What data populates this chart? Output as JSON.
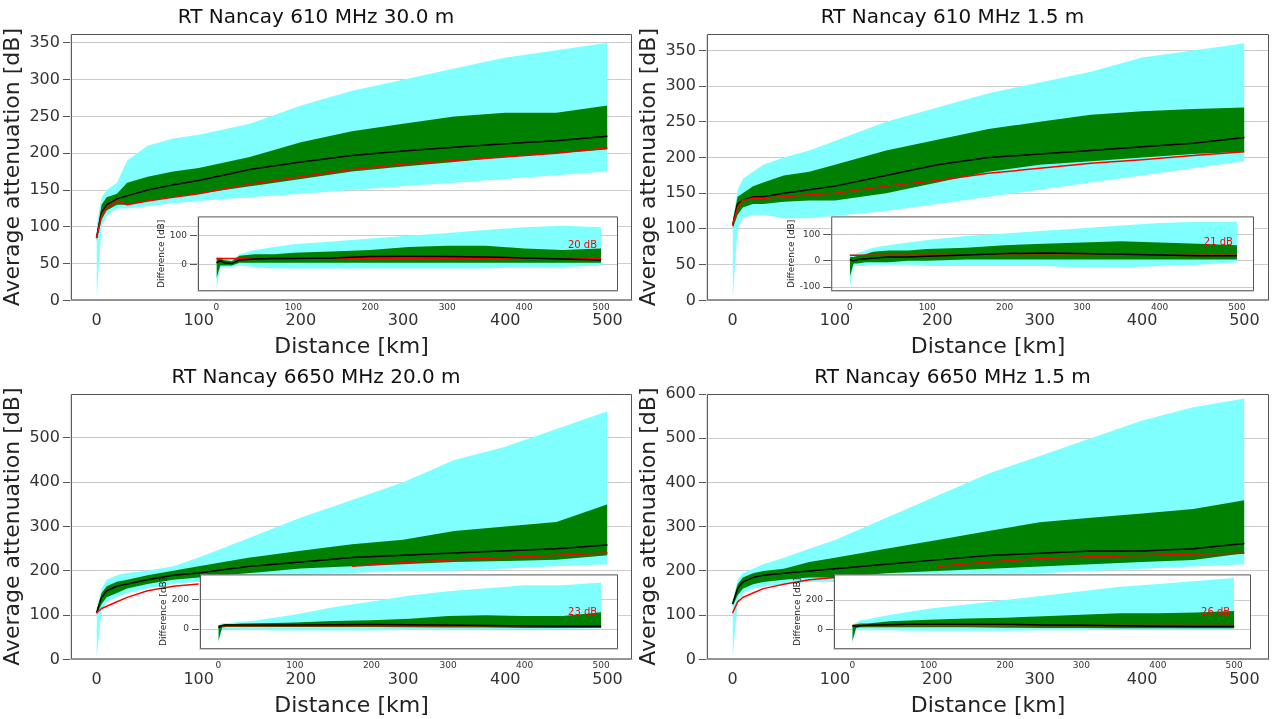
{
  "chart_data": [
    {
      "type": "line",
      "title": "RT Nancay 610 MHz 30.0 m",
      "xlabel": "Distance [km]",
      "ylabel": "Average attenuation [dB]",
      "xlim": [
        -25,
        524
      ],
      "ylim": [
        0,
        362
      ],
      "xticks": [
        0,
        100,
        200,
        300,
        400,
        500
      ],
      "yticks": [
        0,
        50,
        100,
        150,
        200,
        250,
        300,
        350
      ],
      "grid": "y",
      "marker": "none",
      "x": [
        0,
        5,
        10,
        20,
        30,
        50,
        75,
        100,
        150,
        200,
        250,
        300,
        350,
        400,
        450,
        500
      ],
      "series": [
        {
          "color": "#80ffff",
          "values": [
            null,
            null,
            null,
            null,
            null,
            null,
            null,
            null,
            null,
            null,
            null,
            null,
            null,
            null,
            null,
            null
          ],
          "lower": [
            0,
            100,
            115,
            125,
            125,
            128,
            132,
            135,
            140,
            145,
            150,
            155,
            160,
            165,
            170,
            175
          ],
          "upper": [
            100,
            140,
            150,
            160,
            190,
            210,
            220,
            225,
            240,
            265,
            285,
            300,
            315,
            330,
            340,
            350
          ]
        },
        {
          "color": "#008000",
          "values": [
            null,
            null,
            null,
            null,
            null,
            null,
            null,
            null,
            null,
            null,
            null,
            null,
            null,
            null,
            null,
            null
          ],
          "lower": [
            80,
            110,
            122,
            130,
            130,
            135,
            140,
            145,
            155,
            165,
            175,
            182,
            188,
            195,
            200,
            205
          ],
          "upper": [
            90,
            130,
            140,
            145,
            160,
            168,
            175,
            180,
            195,
            215,
            230,
            240,
            250,
            255,
            255,
            265
          ]
        },
        {
          "color": "#000000",
          "values": [
            85,
            120,
            130,
            138,
            142,
            150,
            157,
            163,
            178,
            188,
            197,
            203,
            208,
            213,
            217,
            223
          ]
        },
        {
          "color": "#ff0000",
          "values": [
            85,
            115,
            125,
            135,
            130,
            135,
            140,
            145,
            158,
            168,
            178,
            185,
            190,
            195,
            200,
            207
          ]
        }
      ]
    },
    {
      "type": "line",
      "ylabel": "Difference [dB]",
      "xlim": [
        -24,
        522
      ],
      "ylim": [
        -95,
        168
      ],
      "xticks": [
        0,
        100,
        200,
        300,
        400,
        500
      ],
      "yticks": [
        0,
        100
      ],
      "grid": "y",
      "marker": "none",
      "x": [
        0,
        5,
        10,
        20,
        30,
        50,
        75,
        100,
        150,
        200,
        250,
        300,
        350,
        400,
        450,
        500
      ],
      "series": [
        {
          "color": "#80ffff",
          "values": [
            null,
            null,
            null,
            null,
            null,
            null,
            null,
            null,
            null,
            null,
            null,
            null,
            null,
            null,
            null,
            null
          ],
          "lower": [
            -90,
            -10,
            -10,
            -10,
            -5,
            -10,
            -15,
            -15,
            -15,
            -15,
            -15,
            -15,
            -15,
            -10,
            -10,
            -5
          ],
          "upper": [
            25,
            25,
            20,
            15,
            35,
            50,
            60,
            70,
            80,
            90,
            100,
            110,
            120,
            130,
            135,
            130
          ]
        },
        {
          "color": "#008000",
          "values": [
            null,
            null,
            null,
            null,
            null,
            null,
            null,
            null,
            null,
            null,
            null,
            null,
            null,
            null,
            null,
            null
          ],
          "lower": [
            -50,
            -5,
            -5,
            -5,
            5,
            5,
            5,
            5,
            5,
            5,
            5,
            5,
            5,
            5,
            5,
            5
          ],
          "upper": [
            20,
            20,
            15,
            10,
            30,
            35,
            35,
            40,
            45,
            50,
            60,
            65,
            65,
            55,
            50,
            55
          ]
        },
        {
          "color": "#000000",
          "values": [
            5,
            12,
            5,
            2,
            15,
            18,
            20,
            20,
            22,
            27,
            28,
            27,
            25,
            22,
            18,
            15
          ]
        }
      ],
      "ref_lines": [
        {
          "axis": "y",
          "value": 20,
          "label": "20 dB",
          "color": "#ff0000"
        }
      ]
    },
    {
      "type": "line",
      "title": "RT Nancay 610 MHz 1.5 m",
      "xlabel": "Distance [km]",
      "ylabel": "Average attenuation [dB]",
      "xlim": [
        -25,
        524
      ],
      "ylim": [
        0,
        373
      ],
      "xticks": [
        0,
        100,
        200,
        300,
        400,
        500
      ],
      "yticks": [
        0,
        50,
        100,
        150,
        200,
        250,
        300,
        350
      ],
      "grid": "y",
      "marker": "none",
      "x": [
        0,
        5,
        10,
        20,
        30,
        50,
        75,
        100,
        150,
        200,
        250,
        300,
        350,
        400,
        450,
        500
      ],
      "series": [
        {
          "color": "#80ffff",
          "values": [
            null,
            null,
            null,
            null,
            null,
            null,
            null,
            null,
            null,
            null,
            null,
            null,
            null,
            null,
            null,
            null
          ],
          "lower": [
            0,
            100,
            115,
            120,
            120,
            115,
            115,
            null,
            125,
            135,
            145,
            155,
            165,
            175,
            185,
            195
          ],
          "upper": [
            110,
            155,
            170,
            180,
            190,
            200,
            210,
            null,
            250,
            270,
            290,
            305,
            320,
            340,
            350,
            360
          ]
        },
        {
          "color": "#008000",
          "values": [
            null,
            null,
            null,
            null,
            null,
            null,
            null,
            null,
            null,
            null,
            null,
            null,
            null,
            null,
            null,
            null
          ],
          "lower": [
            100,
            120,
            130,
            135,
            135,
            138,
            140,
            140,
            150,
            165,
            180,
            190,
            195,
            200,
            205,
            208
          ],
          "upper": [
            110,
            145,
            150,
            160,
            165,
            175,
            180,
            190,
            210,
            225,
            240,
            250,
            260,
            265,
            268,
            270
          ]
        },
        {
          "color": "#000000",
          "values": [
            105,
            135,
            140,
            145,
            145,
            150,
            155,
            160,
            175,
            190,
            200,
            205,
            210,
            215,
            220,
            228
          ]
        },
        {
          "color": "#ff0000",
          "values": [
            105,
            130,
            140,
            143,
            143,
            145,
            148,
            150,
            160,
            168,
            178,
            185,
            192,
            197,
            203,
            208
          ]
        }
      ]
    },
    {
      "type": "line",
      "ylabel": "Difference [dB]",
      "xlim": [
        -24,
        522
      ],
      "ylim": [
        -116,
        170
      ],
      "xticks": [
        0,
        100,
        200,
        300,
        400,
        500
      ],
      "yticks": [
        -100,
        0,
        100
      ],
      "grid": "y",
      "marker": "none",
      "x": [
        0,
        5,
        10,
        20,
        30,
        50,
        75,
        100,
        150,
        200,
        250,
        300,
        350,
        400,
        450,
        500
      ],
      "series": [
        {
          "color": "#80ffff",
          "values": [
            null,
            null,
            null,
            null,
            null,
            null,
            null,
            null,
            null,
            null,
            null,
            null,
            null,
            null,
            null,
            null
          ],
          "lower": [
            -100,
            -20,
            -20,
            -20,
            -15,
            -15,
            -15,
            -20,
            -20,
            -20,
            -20,
            -25,
            -25,
            -20,
            -15,
            -5
          ],
          "upper": [
            20,
            25,
            30,
            40,
            50,
            60,
            70,
            80,
            95,
            105,
            115,
            125,
            135,
            145,
            150,
            150
          ]
        },
        {
          "color": "#008000",
          "values": [
            null,
            null,
            null,
            null,
            null,
            null,
            null,
            null,
            null,
            null,
            null,
            null,
            null,
            null,
            null,
            null
          ],
          "lower": [
            -60,
            -10,
            -10,
            -5,
            -5,
            -5,
            0,
            0,
            5,
            5,
            5,
            5,
            5,
            5,
            5,
            5
          ],
          "upper": [
            15,
            15,
            20,
            25,
            35,
            40,
            40,
            45,
            50,
            60,
            65,
            70,
            75,
            70,
            65,
            60
          ]
        },
        {
          "color": "#000000",
          "values": [
            5,
            0,
            5,
            8,
            10,
            15,
            15,
            18,
            22,
            28,
            30,
            28,
            25,
            22,
            20,
            20
          ]
        }
      ],
      "ref_lines": [
        {
          "axis": "y",
          "value": 21,
          "label": "21 dB",
          "color": "#ff0000"
        }
      ]
    },
    {
      "type": "line",
      "title": "RT Nancay 6650 MHz 20.0 m",
      "xlabel": "Distance [km]",
      "ylabel": "Average attenuation [dB]",
      "xlim": [
        -25,
        524
      ],
      "ylim": [
        0,
        599
      ],
      "xticks": [
        0,
        100,
        200,
        300,
        400,
        500
      ],
      "yticks": [
        0,
        100,
        200,
        300,
        400,
        500
      ],
      "grid": "y",
      "marker": "none",
      "x": [
        0,
        5,
        10,
        20,
        30,
        50,
        75,
        100,
        150,
        200,
        250,
        300,
        350,
        400,
        450,
        500
      ],
      "series": [
        {
          "color": "#80ffff",
          "values": [
            null,
            null,
            null,
            null,
            null,
            null,
            null,
            null,
            null,
            null,
            null,
            null,
            null,
            null,
            null,
            null
          ],
          "lower": [
            0,
            110,
            130,
            140,
            150,
            160,
            170,
            175,
            null,
            190,
            195,
            200,
            200,
            205,
            210,
            215
          ],
          "upper": [
            115,
            160,
            180,
            190,
            195,
            200,
            210,
            230,
            null,
            320,
            360,
            400,
            450,
            480,
            520,
            560
          ]
        },
        {
          "color": "#008000",
          "values": [
            null,
            null,
            null,
            null,
            null,
            null,
            null,
            null,
            null,
            null,
            null,
            null,
            null,
            null,
            null,
            null
          ],
          "lower": [
            100,
            125,
            140,
            150,
            160,
            170,
            180,
            185,
            195,
            205,
            210,
            215,
            220,
            222,
            225,
            235
          ],
          "upper": [
            110,
            150,
            165,
            175,
            180,
            190,
            200,
            210,
            230,
            245,
            260,
            270,
            290,
            300,
            310,
            350
          ]
        },
        {
          "color": "#000000",
          "values": [
            105,
            140,
            155,
            165,
            170,
            180,
            190,
            195,
            210,
            220,
            230,
            235,
            240,
            245,
            250,
            258
          ]
        },
        {
          "color": "#ff0000",
          "values": [
            105,
            115,
            120,
            130,
            140,
            155,
            165,
            170,
            null,
            null,
            210,
            218,
            225,
            230,
            235,
            240
          ]
        }
      ]
    },
    {
      "type": "line",
      "ylabel": "Difference [dB]",
      "xlim": [
        -24,
        522
      ],
      "ylim": [
        -138,
        375
      ],
      "xticks": [
        0,
        100,
        200,
        300,
        400,
        500
      ],
      "yticks": [
        0,
        200
      ],
      "grid": "y",
      "marker": "none",
      "x": [
        0,
        5,
        10,
        20,
        30,
        50,
        75,
        100,
        150,
        200,
        250,
        300,
        350,
        400,
        450,
        500
      ],
      "series": [
        {
          "color": "#80ffff",
          "values": [
            null,
            null,
            null,
            null,
            null,
            null,
            null,
            null,
            null,
            null,
            null,
            null,
            null,
            null,
            null,
            null
          ],
          "lower": [
            -100,
            0,
            0,
            0,
            -5,
            -5,
            -10,
            -10,
            -10,
            -10,
            -5,
            -5,
            0,
            0,
            0,
            5
          ],
          "upper": [
            25,
            40,
            40,
            45,
            50,
            60,
            80,
            100,
            150,
            190,
            230,
            260,
            280,
            300,
            300,
            320
          ]
        },
        {
          "color": "#008000",
          "values": [
            null,
            null,
            null,
            null,
            null,
            null,
            null,
            null,
            null,
            null,
            null,
            null,
            null,
            null,
            null,
            null
          ],
          "lower": [
            -80,
            10,
            15,
            15,
            15,
            15,
            15,
            15,
            15,
            15,
            12,
            10,
            10,
            8,
            8,
            8
          ],
          "upper": [
            20,
            30,
            35,
            35,
            38,
            40,
            42,
            45,
            55,
            60,
            70,
            90,
            95,
            90,
            90,
            115
          ]
        },
        {
          "color": "#000000",
          "values": [
            10,
            25,
            28,
            28,
            28,
            28,
            28,
            28,
            30,
            32,
            30,
            28,
            25,
            22,
            20,
            20
          ]
        }
      ],
      "ref_lines": [
        {
          "axis": "y",
          "value": 23,
          "label": "23 dB",
          "color": "#ff0000"
        }
      ]
    },
    {
      "type": "line",
      "title": "RT Nancay 6650 MHz 1.5 m",
      "xlabel": "Distance [km]",
      "ylabel": "Average attenuation [dB]",
      "xlim": [
        -25,
        524
      ],
      "ylim": [
        0,
        600
      ],
      "xticks": [
        0,
        100,
        200,
        300,
        400,
        500
      ],
      "yticks": [
        0,
        100,
        200,
        300,
        400,
        500,
        600
      ],
      "grid": "y",
      "marker": "none",
      "x": [
        0,
        5,
        10,
        20,
        30,
        50,
        75,
        100,
        150,
        200,
        250,
        300,
        350,
        400,
        450,
        500
      ],
      "series": [
        {
          "color": "#80ffff",
          "values": [
            null,
            null,
            null,
            null,
            null,
            null,
            null,
            null,
            null,
            null,
            null,
            null,
            null,
            null,
            null,
            null
          ],
          "lower": [
            0,
            130,
            150,
            160,
            165,
            170,
            175,
            175,
            null,
            null,
            190,
            195,
            200,
            205,
            210,
            215
          ],
          "upper": [
            130,
            180,
            195,
            205,
            215,
            230,
            250,
            270,
            null,
            null,
            420,
            460,
            500,
            540,
            570,
            590
          ]
        },
        {
          "color": "#008000",
          "values": [
            null,
            null,
            null,
            null,
            null,
            null,
            null,
            null,
            null,
            null,
            null,
            null,
            null,
            null,
            null,
            null
          ],
          "lower": [
            120,
            145,
            160,
            170,
            175,
            180,
            185,
            185,
            195,
            200,
            205,
            210,
            215,
            220,
            225,
            240
          ],
          "upper": [
            130,
            170,
            185,
            195,
            200,
            205,
            220,
            230,
            250,
            270,
            290,
            310,
            320,
            330,
            340,
            360
          ]
        },
        {
          "color": "#000000",
          "values": [
            125,
            160,
            175,
            185,
            190,
            195,
            200,
            205,
            215,
            225,
            235,
            240,
            245,
            245,
            250,
            262
          ]
        },
        {
          "color": "#ff0000",
          "values": [
            105,
            130,
            140,
            150,
            160,
            170,
            180,
            185,
            null,
            210,
            220,
            228,
            232,
            235,
            238,
            240
          ]
        }
      ]
    },
    {
      "type": "line",
      "ylabel": "Difference [dB]",
      "xlim": [
        -24,
        522
      ],
      "ylim": [
        -135,
        375
      ],
      "xticks": [
        0,
        100,
        200,
        300,
        400,
        500
      ],
      "yticks": [
        0,
        200
      ],
      "grid": "y",
      "marker": "none",
      "x": [
        0,
        5,
        10,
        20,
        30,
        50,
        75,
        100,
        150,
        200,
        250,
        300,
        350,
        400,
        450,
        500
      ],
      "series": [
        {
          "color": "#80ffff",
          "values": [
            null,
            null,
            null,
            null,
            null,
            null,
            null,
            null,
            null,
            null,
            null,
            null,
            null,
            null,
            null,
            null
          ],
          "lower": [
            -100,
            0,
            -5,
            -5,
            -5,
            -5,
            -10,
            -10,
            -10,
            -10,
            -5,
            -5,
            0,
            0,
            0,
            0
          ],
          "upper": [
            30,
            45,
            60,
            70,
            80,
            100,
            120,
            140,
            170,
            200,
            230,
            260,
            290,
            310,
            330,
            350
          ]
        },
        {
          "color": "#008000",
          "values": [
            null,
            null,
            null,
            null,
            null,
            null,
            null,
            null,
            null,
            null,
            null,
            null,
            null,
            null,
            null,
            null
          ],
          "lower": [
            -80,
            10,
            15,
            15,
            15,
            15,
            15,
            15,
            15,
            12,
            10,
            10,
            8,
            8,
            8,
            8
          ],
          "upper": [
            30,
            35,
            40,
            40,
            45,
            55,
            60,
            65,
            75,
            80,
            90,
            100,
            110,
            110,
            115,
            125
          ]
        },
        {
          "color": "#000000",
          "values": [
            25,
            22,
            25,
            28,
            30,
            32,
            35,
            35,
            35,
            35,
            30,
            28,
            25,
            22,
            20,
            20
          ]
        }
      ],
      "ref_lines": [
        {
          "axis": "y",
          "value": 26,
          "label": "26 dB",
          "color": "#ff0000"
        }
      ]
    }
  ]
}
